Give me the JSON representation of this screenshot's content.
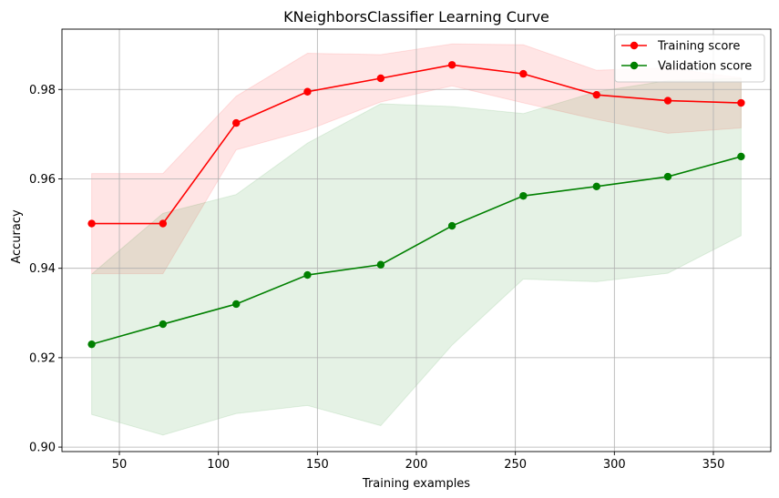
{
  "chart_data": {
    "type": "line",
    "title": "KNeighborsClassifier Learning Curve",
    "xlabel": "Training examples",
    "ylabel": "Accuracy",
    "xlim": [
      21,
      379
    ],
    "ylim": [
      0.899,
      0.9935
    ],
    "xticks": [
      50,
      100,
      150,
      200,
      250,
      300,
      350
    ],
    "yticks": [
      0.9,
      0.92,
      0.94,
      0.96,
      0.98
    ],
    "ytick_labels": [
      "0.90",
      "0.92",
      "0.94",
      "0.96",
      "0.98"
    ],
    "grid": true,
    "legend_position": "top-right",
    "x": [
      36,
      72,
      109,
      145,
      182,
      218,
      254,
      291,
      327,
      364
    ],
    "series": [
      {
        "name": "Training score",
        "color": "#ff0000",
        "fill_color": "#ff0000",
        "values": [
          0.95,
          0.95,
          0.9725,
          0.9795,
          0.9825,
          0.9855,
          0.9835,
          0.9788,
          0.9775,
          0.977
        ],
        "band_upper": [
          0.9612,
          0.9612,
          0.9785,
          0.9881,
          0.9878,
          0.9902,
          0.99,
          0.9843,
          0.9848,
          0.9826
        ],
        "band_lower": [
          0.9388,
          0.9388,
          0.9665,
          0.9709,
          0.9772,
          0.9808,
          0.977,
          0.9733,
          0.9702,
          0.9714
        ]
      },
      {
        "name": "Validation score",
        "color": "#008000",
        "fill_color": "#008000",
        "values": [
          0.923,
          0.9275,
          0.932,
          0.9385,
          0.9408,
          0.9495,
          0.9562,
          0.9583,
          0.9605,
          0.965
        ],
        "band_upper": [
          0.9387,
          0.9523,
          0.9565,
          0.968,
          0.9768,
          0.9762,
          0.9746,
          0.9795,
          0.982,
          0.9825
        ],
        "band_lower": [
          0.9073,
          0.9027,
          0.9075,
          0.9093,
          0.9048,
          0.9228,
          0.9376,
          0.937,
          0.9389,
          0.9473
        ]
      }
    ]
  }
}
